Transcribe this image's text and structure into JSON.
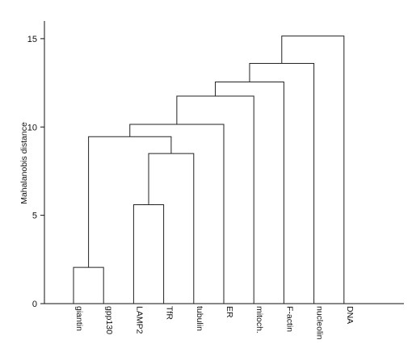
{
  "chart_data": {
    "type": "dendrogram",
    "title": "",
    "xlabel": "",
    "ylabel": "Mahalanobis distance",
    "ylim": [
      0,
      16
    ],
    "yticks": [
      0,
      5,
      10,
      15
    ],
    "leaves": [
      "giantin",
      "gpp130",
      "LAMP2",
      "TfR",
      "tubulin",
      "ER",
      "mitoch.",
      "F-actin",
      "nucleolin",
      "DNA"
    ],
    "merges": [
      {
        "left": "giantin",
        "right": "gpp130",
        "distance": 2.05
      },
      {
        "left": "LAMP2",
        "right": "TfR",
        "distance": 5.6
      },
      {
        "left": "LAMP2+TfR",
        "right": "tubulin",
        "distance": 8.5
      },
      {
        "left": "giantin+gpp130",
        "right": "LAMP2+TfR+tubulin",
        "distance": 9.45
      },
      {
        "left": "giantin..tubulin",
        "right": "ER",
        "distance": 10.15
      },
      {
        "left": "giantin..ER",
        "right": "mitoch.",
        "distance": 11.75
      },
      {
        "left": "giantin..mitoch.",
        "right": "F-actin",
        "distance": 12.55
      },
      {
        "left": "giantin..F-actin",
        "right": "nucleolin",
        "distance": 13.6
      },
      {
        "left": "giantin..nucleolin",
        "right": "DNA",
        "distance": 15.15
      }
    ],
    "grid": false
  }
}
